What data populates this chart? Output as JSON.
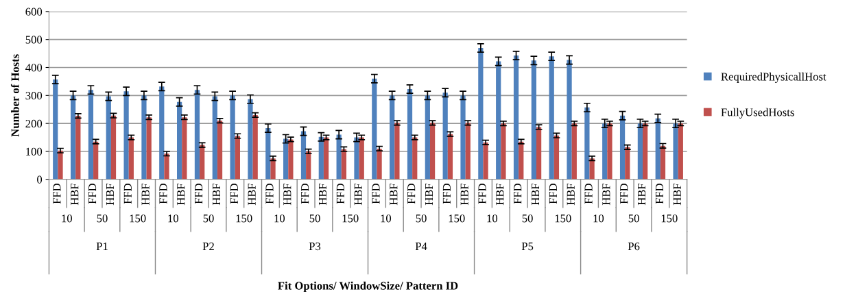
{
  "chart_data": {
    "type": "bar",
    "ylabel": "Number of Hosts",
    "categories": [
      "FFD",
      "HBF",
      "FFD",
      "HBF",
      "FFD",
      "HBF",
      "FFD",
      "HBF",
      "FFD",
      "HBF",
      "FFD",
      "HBF",
      "FFD",
      "HBF",
      "FFD",
      "HBF",
      "FFD",
      "HBF",
      "FFD",
      "HBF",
      "FFD",
      "HBF",
      "FFD",
      "HBF",
      "FFD",
      "HBF",
      "FFD",
      "HBF",
      "FFD",
      "HBF",
      "FFD",
      "HBF",
      "FFD",
      "HBF",
      "FFD",
      "HBF"
    ],
    "annotations": [
      "10",
      "50",
      "150",
      "10",
      "50",
      "150",
      "10",
      "50",
      "150",
      "10",
      "50",
      "150",
      "10",
      "50",
      "150",
      "10",
      "50",
      "150",
      "P1",
      "P2",
      "P3",
      "P4",
      "P5",
      "P6",
      "Fit Options/ WindowSize/ Pattern ID"
    ],
    "series": [
      {
        "name": "RequiredPhysicallHost",
        "color": "#4f81bd",
        "values": [
          357,
          300,
          320,
          297,
          315,
          300,
          332,
          277,
          320,
          297,
          300,
          287,
          183,
          145,
          172,
          152,
          160,
          150,
          360,
          300,
          323,
          300,
          310,
          300,
          470,
          422,
          443,
          425,
          440,
          427,
          257,
          200,
          228,
          200,
          218,
          200
        ],
        "errors": [
          15,
          15,
          15,
          15,
          15,
          15,
          15,
          15,
          15,
          15,
          15,
          15,
          15,
          15,
          15,
          15,
          15,
          15,
          15,
          15,
          15,
          15,
          15,
          15,
          15,
          15,
          15,
          15,
          15,
          15,
          15,
          15,
          15,
          15,
          15,
          15
        ]
      },
      {
        "name": "FullyUsedHosts",
        "color": "#c0504d",
        "values": [
          103,
          227,
          135,
          228,
          150,
          222,
          92,
          222,
          123,
          210,
          155,
          230,
          75,
          143,
          100,
          150,
          108,
          150,
          110,
          202,
          150,
          202,
          162,
          202,
          132,
          200,
          135,
          187,
          157,
          200,
          75,
          200,
          115,
          200,
          120,
          200
        ],
        "errors": [
          8,
          8,
          8,
          8,
          8,
          8,
          8,
          8,
          8,
          8,
          8,
          8,
          8,
          8,
          8,
          8,
          8,
          8,
          8,
          8,
          8,
          8,
          8,
          8,
          8,
          8,
          8,
          8,
          8,
          8,
          8,
          8,
          8,
          8,
          8,
          8
        ]
      }
    ],
    "ylim": [
      0,
      600
    ],
    "yticks": [
      0,
      100,
      200,
      300,
      400,
      500,
      600
    ],
    "grid": "y",
    "legend": "right"
  }
}
